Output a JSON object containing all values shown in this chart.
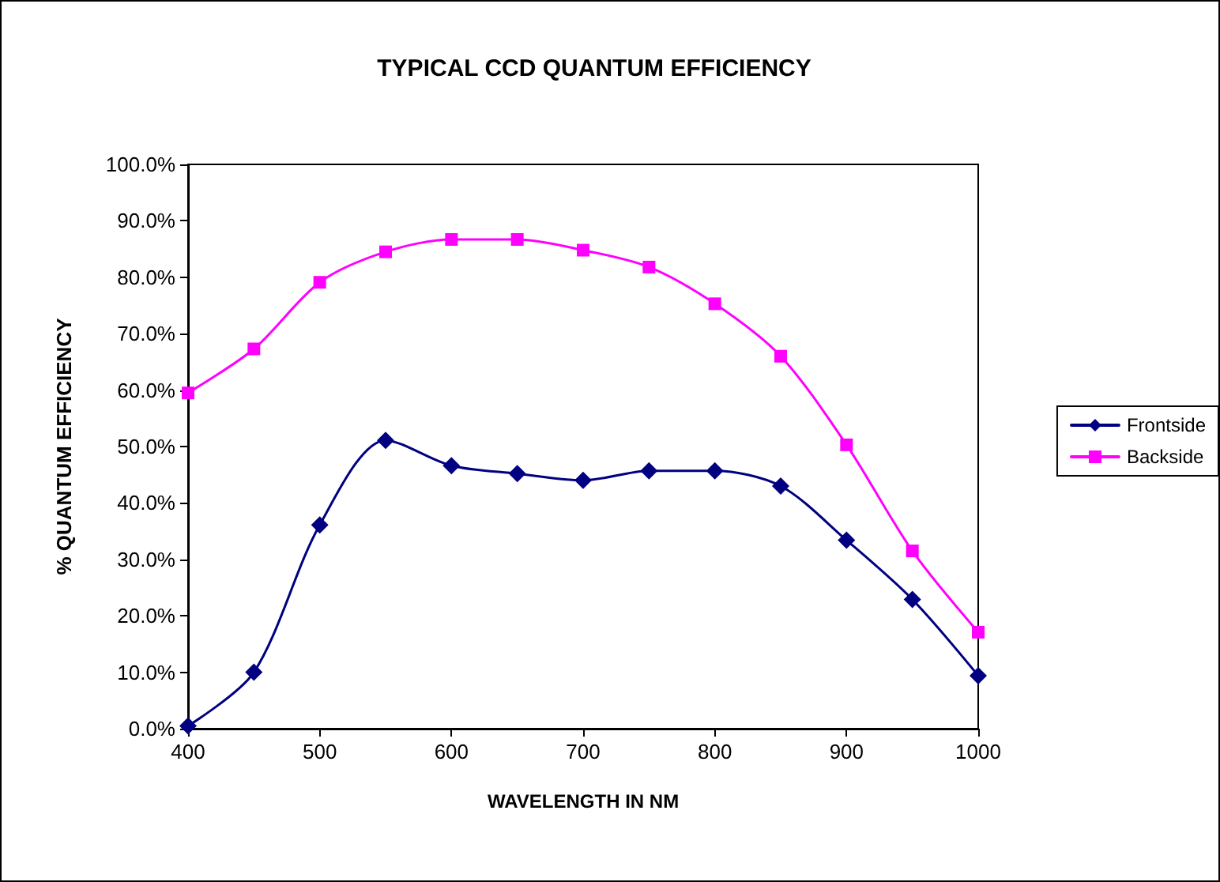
{
  "chart_data": {
    "type": "line",
    "title": "TYPICAL CCD QUANTUM EFFICIENCY",
    "xlabel": "WAVELENGTH IN NM",
    "ylabel": "% QUANTUM EFFICIENCY",
    "x": [
      400,
      450,
      500,
      550,
      600,
      650,
      700,
      750,
      800,
      850,
      900,
      950,
      1000
    ],
    "series": [
      {
        "name": "Frontside",
        "color": "#000080",
        "marker": "diamond",
        "values": [
          0.5,
          10.0,
          36.1,
          51.1,
          46.6,
          45.2,
          44.0,
          45.7,
          45.7,
          43.0,
          33.4,
          22.9,
          9.4
        ]
      },
      {
        "name": "Backside",
        "color": "#ff00ff",
        "marker": "square",
        "values": [
          59.5,
          67.3,
          79.1,
          84.5,
          86.7,
          86.7,
          84.8,
          81.8,
          75.3,
          66.0,
          50.3,
          31.5,
          17.1
        ]
      }
    ],
    "xlim": [
      400,
      1000
    ],
    "xticks": [
      400,
      500,
      600,
      700,
      800,
      900,
      1000
    ],
    "ylim": [
      0,
      100
    ],
    "yticks": [
      {
        "value": 0,
        "label": "0.0%"
      },
      {
        "value": 10,
        "label": "10.0%"
      },
      {
        "value": 20,
        "label": "20.0%"
      },
      {
        "value": 30,
        "label": "30.0%"
      },
      {
        "value": 40,
        "label": "40.0%"
      },
      {
        "value": 50,
        "label": "50.0%"
      },
      {
        "value": 60,
        "label": "60.0%"
      },
      {
        "value": 70,
        "label": "70.0%"
      },
      {
        "value": 80,
        "label": "80.0%"
      },
      {
        "value": 90,
        "label": "90.0%"
      },
      {
        "value": 100,
        "label": "100.0%"
      }
    ],
    "grid": false,
    "legend": "right",
    "line_style": "solid"
  }
}
